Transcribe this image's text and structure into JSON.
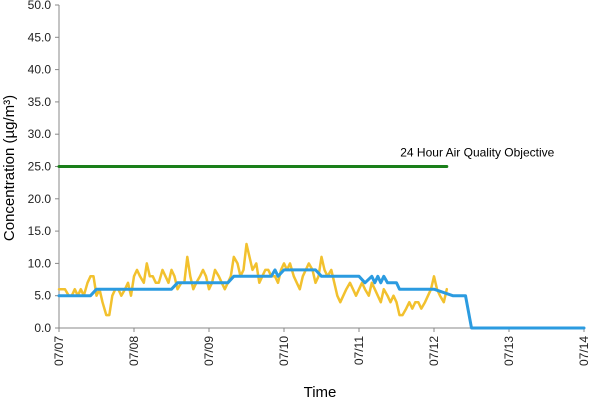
{
  "chart_data": {
    "type": "line",
    "xlabel": "Time",
    "ylabel": "Concentration (µg/m³)",
    "ylim": [
      0,
      50
    ],
    "y_ticks": [
      "0.0",
      "5.0",
      "10.0",
      "15.0",
      "20.0",
      "25.0",
      "30.0",
      "35.0",
      "40.0",
      "45.0",
      "50.0"
    ],
    "xlim": [
      0,
      7
    ],
    "x_ticks": [
      "07/07",
      "07/08",
      "07/09",
      "07/10",
      "07/11",
      "07/12",
      "07/13",
      "07/14"
    ],
    "grid": false,
    "legend": "none",
    "annotation": {
      "text": "24 Hour Air Quality Objective",
      "x": 4.55,
      "y": 25.6
    },
    "series": [
      {
        "color": "#1a7f1a",
        "x": [
          0,
          5.17
        ],
        "y": [
          25,
          25
        ]
      },
      {
        "color": "#f2c12e",
        "x": [
          0,
          0.08,
          0.13,
          0.17,
          0.21,
          0.25,
          0.29,
          0.33,
          0.38,
          0.42,
          0.46,
          0.5,
          0.54,
          0.58,
          0.63,
          0.67,
          0.71,
          0.75,
          0.79,
          0.83,
          0.88,
          0.92,
          0.96,
          1.0,
          1.04,
          1.08,
          1.13,
          1.17,
          1.21,
          1.25,
          1.29,
          1.33,
          1.38,
          1.42,
          1.46,
          1.5,
          1.54,
          1.58,
          1.63,
          1.67,
          1.71,
          1.75,
          1.79,
          1.83,
          1.88,
          1.92,
          1.96,
          2.0,
          2.04,
          2.08,
          2.13,
          2.17,
          2.21,
          2.25,
          2.29,
          2.33,
          2.38,
          2.42,
          2.46,
          2.5,
          2.54,
          2.58,
          2.63,
          2.67,
          2.71,
          2.75,
          2.79,
          2.83,
          2.88,
          2.92,
          2.96,
          3.0,
          3.04,
          3.08,
          3.13,
          3.17,
          3.21,
          3.25,
          3.29,
          3.33,
          3.38,
          3.42,
          3.46,
          3.5,
          3.54,
          3.58,
          3.63,
          3.67,
          3.71,
          3.75,
          3.79,
          3.83,
          3.88,
          3.92,
          3.96,
          4.0,
          4.04,
          4.08,
          4.13,
          4.17,
          4.21,
          4.25,
          4.29,
          4.33,
          4.38,
          4.42,
          4.46,
          4.5,
          4.54,
          4.58,
          4.63,
          4.67,
          4.71,
          4.75,
          4.79,
          4.83,
          4.88,
          4.92,
          4.96,
          5.0,
          5.04,
          5.08,
          5.13,
          5.17
        ],
        "y": [
          6,
          6,
          5,
          5,
          6,
          5,
          6,
          5,
          7,
          8,
          8,
          5,
          6,
          4,
          2,
          2,
          5,
          6,
          6,
          5,
          6,
          7,
          5,
          8,
          9,
          8,
          7,
          10,
          8,
          8,
          7,
          7,
          9,
          8,
          7,
          9,
          8,
          6,
          7,
          7,
          11,
          8,
          6,
          7,
          8,
          9,
          8,
          6,
          7,
          9,
          8,
          7,
          6,
          7,
          8,
          11,
          10,
          8,
          9,
          13,
          11,
          9,
          10,
          7,
          8,
          9,
          9,
          8,
          8,
          7,
          9,
          10,
          9,
          10,
          8,
          7,
          6,
          8,
          9,
          10,
          9,
          7,
          8,
          11,
          9,
          8,
          9,
          7,
          5,
          4,
          5,
          6,
          7,
          6,
          5,
          6,
          7,
          6,
          5,
          7,
          6,
          5,
          4,
          6,
          5,
          4,
          5,
          4,
          2,
          2,
          3,
          4,
          3,
          4,
          4,
          3,
          4,
          5,
          6,
          8,
          6,
          5,
          4,
          6
        ]
      },
      {
        "color": "#2b9be0",
        "x": [
          0,
          0.42,
          0.5,
          1.0,
          1.5,
          1.58,
          2.0,
          2.08,
          2.25,
          2.33,
          2.5,
          2.58,
          2.83,
          2.88,
          2.92,
          3.0,
          3.08,
          3.17,
          3.25,
          3.42,
          3.5,
          4.0,
          4.08,
          4.17,
          4.21,
          4.25,
          4.29,
          4.33,
          4.38,
          4.5,
          4.54,
          4.58,
          4.63,
          5.0,
          5.25,
          5.33,
          5.38,
          5.42,
          5.5,
          7.0
        ],
        "y": [
          5,
          5,
          6,
          6,
          6,
          7,
          7,
          7,
          7,
          8,
          8,
          8,
          8,
          9,
          8,
          9,
          9,
          9,
          9,
          9,
          8,
          8,
          7,
          8,
          7,
          8,
          7,
          8,
          7,
          7,
          6,
          6,
          6,
          6,
          5,
          5,
          5,
          5,
          0,
          0
        ]
      }
    ]
  }
}
